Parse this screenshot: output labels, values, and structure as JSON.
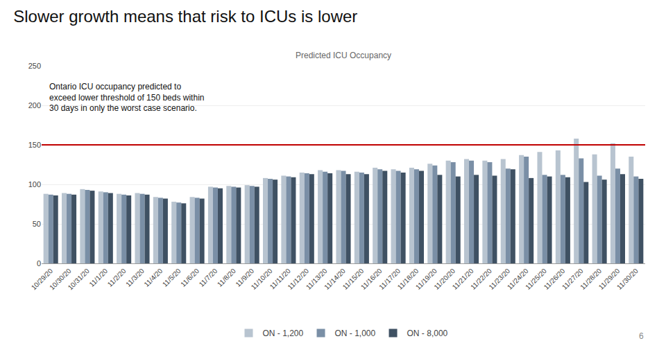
{
  "chart_data": {
    "type": "bar",
    "title": "Slower growth means that risk to ICUs is lower",
    "subtitle": "Predicted ICU Occupancy",
    "annotations": [
      "Ontario ICU occupancy predicted to\nexceed lower threshold of 150 beds within\n30 days in only the worst case scenario.",
      "6"
    ],
    "threshold": {
      "value": 150,
      "color": "#c00000"
    },
    "categories": [
      "10/29/20",
      "10/30/20",
      "10/31/20",
      "11/1/20",
      "11/2/20",
      "11/3/20",
      "11/4/20",
      "11/5/20",
      "11/6/20",
      "11/7/20",
      "11/8/20",
      "11/9/20",
      "11/10/20",
      "11/11/20",
      "11/12/20",
      "11/13/20",
      "11/14/20",
      "11/15/20",
      "11/16/20",
      "11/17/20",
      "11/18/20",
      "11/19/20",
      "11/20/20",
      "11/21/20",
      "11/22/20",
      "11/23/20",
      "11/24/20",
      "11/25/20",
      "11/26/20",
      "11/27/20",
      "11/28/20",
      "11/29/20",
      "11/30/20"
    ],
    "series": [
      {
        "name": "ON - 1,200",
        "color": "#b8c4d0",
        "values": [
          88,
          89,
          94,
          91,
          88,
          89,
          84,
          78,
          84,
          97,
          98,
          99,
          108,
          111,
          115,
          118,
          118,
          116,
          121,
          119,
          121,
          126,
          130,
          132,
          130,
          132,
          137,
          141,
          143,
          158,
          138,
          152,
          135
        ]
      },
      {
        "name": "ON - 1,000",
        "color": "#7a8fa6",
        "values": [
          87,
          88,
          93,
          90,
          87,
          88,
          83,
          77,
          83,
          96,
          97,
          98,
          107,
          110,
          114,
          116,
          117,
          115,
          119,
          117,
          119,
          124,
          128,
          130,
          128,
          120,
          135,
          112,
          112,
          133,
          111,
          120,
          110
        ]
      },
      {
        "name": "ON - 8,000",
        "color": "#3f5163",
        "values": [
          86,
          87,
          92,
          89,
          86,
          87,
          82,
          76,
          82,
          95,
          96,
          97,
          106,
          109,
          113,
          114,
          113,
          113,
          117,
          115,
          117,
          112,
          110,
          112,
          111,
          119,
          108,
          110,
          109,
          103,
          106,
          113,
          107
        ]
      }
    ],
    "ylim": [
      0,
      250
    ],
    "yticks": [
      0,
      50,
      100,
      150,
      200,
      250
    ],
    "grid": true,
    "legend": "bottom"
  }
}
